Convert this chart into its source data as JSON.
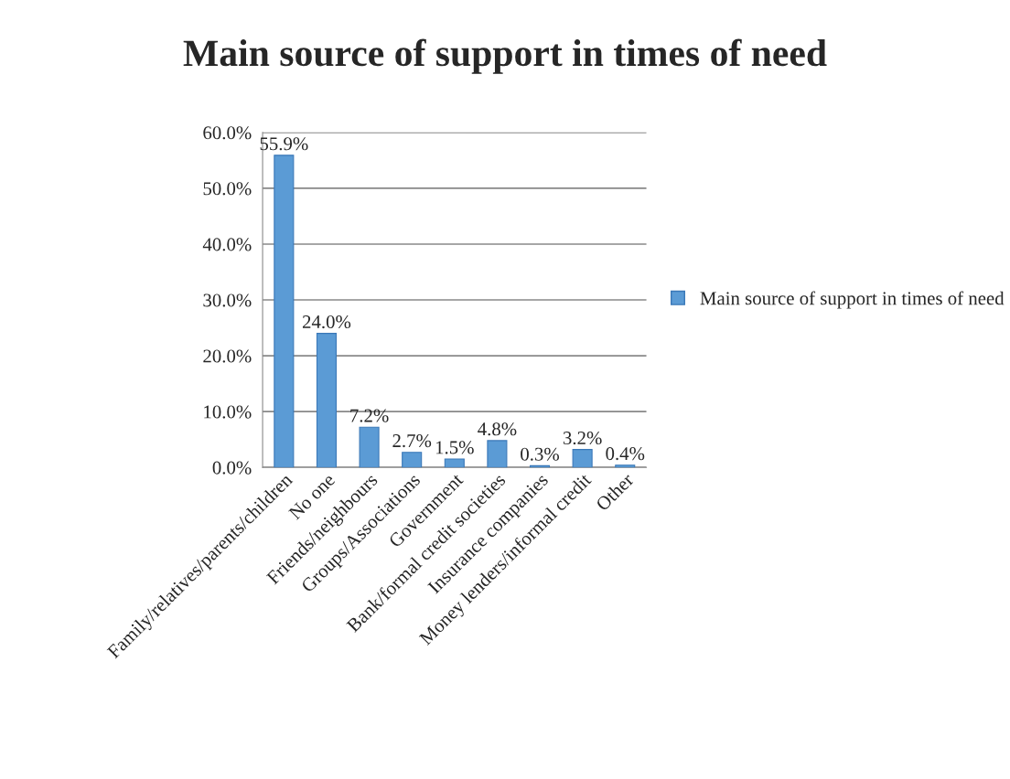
{
  "chart_data": {
    "type": "bar",
    "title": "Main source of support in times of need",
    "categories": [
      "Family/relatives/parents/children",
      "No one",
      "Friends/neighbours",
      "Groups/Associations",
      "Government",
      "Bank/formal credit societies",
      "Insurance companies",
      "Money lenders/informal credit",
      "Other"
    ],
    "series": [
      {
        "name": "Main source of support in times of need",
        "color": "#5b9bd5",
        "values": [
          55.9,
          24.0,
          7.2,
          2.7,
          1.5,
          4.8,
          0.3,
          3.2,
          0.4
        ],
        "value_labels": [
          "55.9%",
          "24.0%",
          "7.2%",
          "2.7%",
          "1.5%",
          "4.8%",
          "0.3%",
          "3.2%",
          "0.4%"
        ]
      }
    ],
    "ylim": [
      0,
      60
    ],
    "yticks": [
      {
        "value": 0,
        "label": "0.0%"
      },
      {
        "value": 10,
        "label": "10.0%"
      },
      {
        "value": 20,
        "label": "20.0%"
      },
      {
        "value": 30,
        "label": "30.0%"
      },
      {
        "value": 40,
        "label": "40.0%"
      },
      {
        "value": 50,
        "label": "50.0%"
      },
      {
        "value": 60,
        "label": "60.0%"
      }
    ],
    "grid": "y",
    "legend": "right"
  }
}
